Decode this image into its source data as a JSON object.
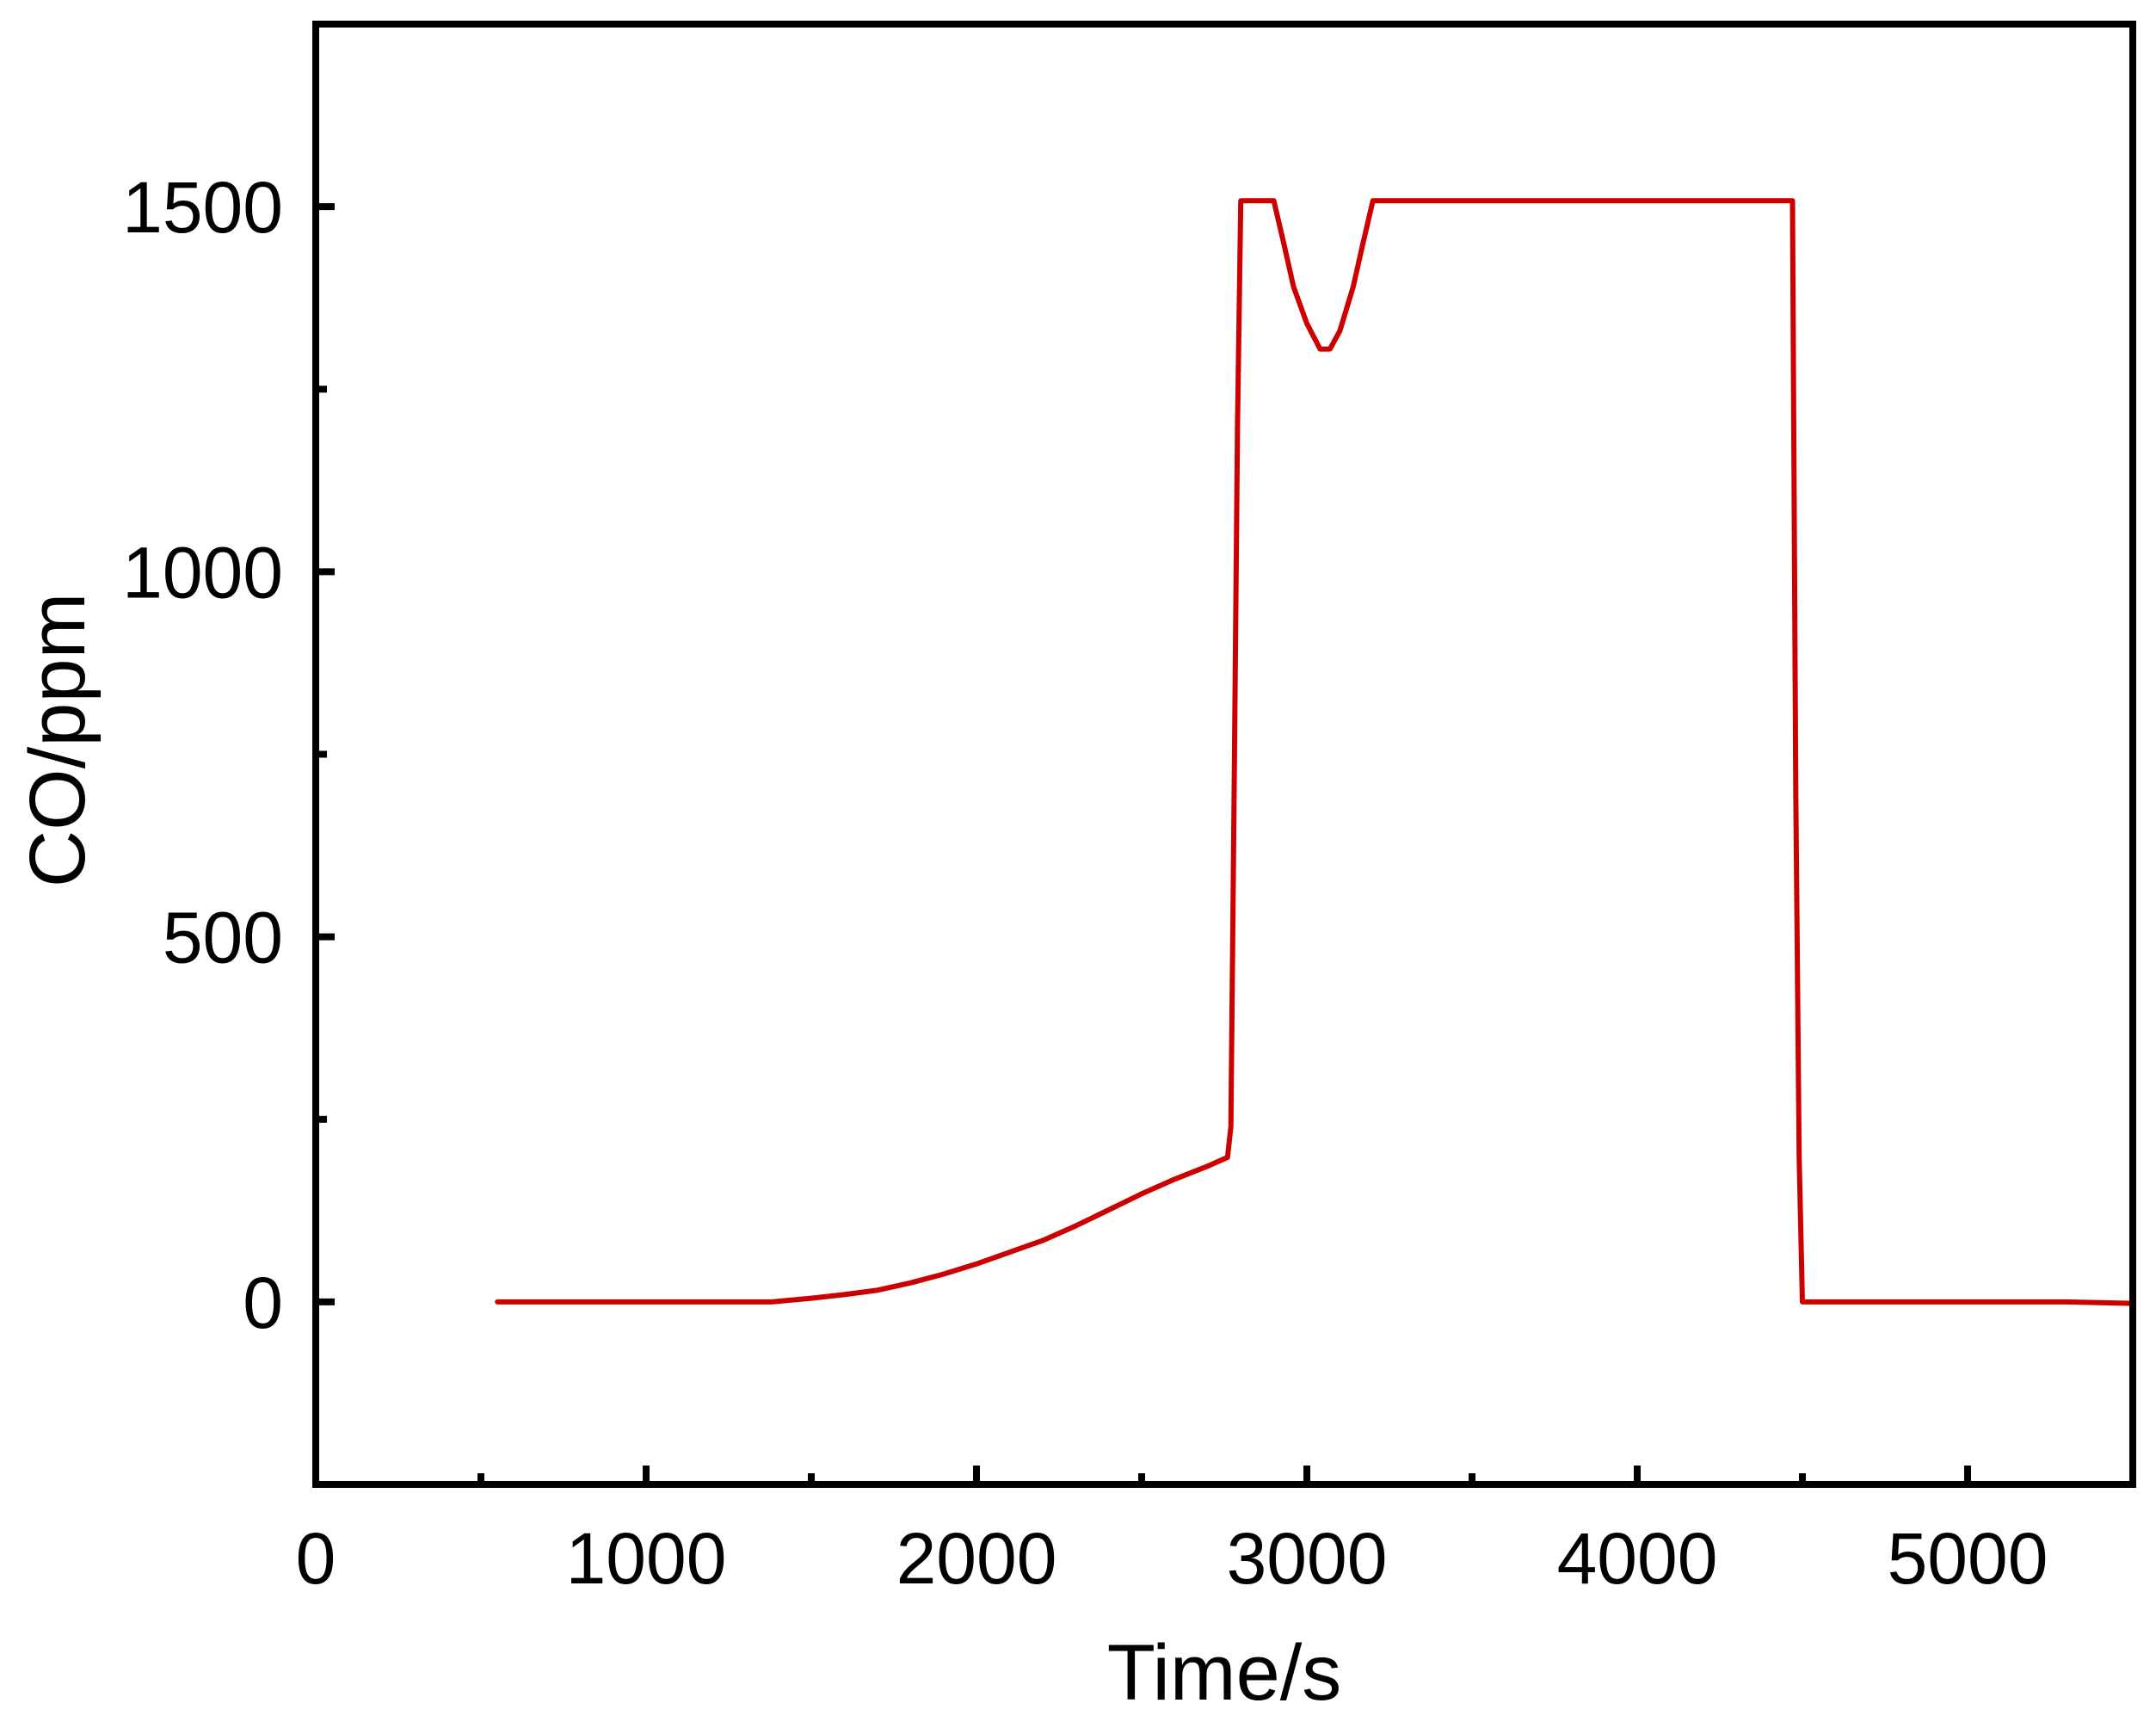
{
  "chart_data": {
    "type": "line",
    "title": "",
    "xlabel": "Time/s",
    "ylabel": "CO/ppm",
    "xlim": [
      0,
      5500
    ],
    "ylim": [
      -250,
      1750
    ],
    "x_ticks": [
      0,
      1000,
      2000,
      3000,
      4000,
      5000
    ],
    "x_tick_labels": [
      "0",
      "1000",
      "2000",
      "3000",
      "4000",
      "5000"
    ],
    "x_minor_ticks": [
      500,
      1500,
      2500,
      3500,
      4500
    ],
    "y_ticks": [
      0,
      500,
      1000,
      1500
    ],
    "y_tick_labels": [
      "0",
      "500",
      "1000",
      "1500"
    ],
    "y_minor_ticks": [
      250,
      750,
      1250
    ],
    "grid": false,
    "legend": "none",
    "series": [
      {
        "color": "#cc0000",
        "points": [
          [
            550,
            0
          ],
          [
            1000,
            0
          ],
          [
            1380,
            0
          ],
          [
            1500,
            5
          ],
          [
            1600,
            10
          ],
          [
            1700,
            16
          ],
          [
            1800,
            26
          ],
          [
            1900,
            38
          ],
          [
            2000,
            52
          ],
          [
            2100,
            68
          ],
          [
            2200,
            84
          ],
          [
            2300,
            104
          ],
          [
            2400,
            126
          ],
          [
            2500,
            148
          ],
          [
            2600,
            168
          ],
          [
            2700,
            186
          ],
          [
            2760,
            198
          ],
          [
            2770,
            240
          ],
          [
            2780,
            700
          ],
          [
            2790,
            1200
          ],
          [
            2800,
            1508
          ],
          [
            2900,
            1508
          ],
          [
            2930,
            1450
          ],
          [
            2960,
            1390
          ],
          [
            3000,
            1340
          ],
          [
            3040,
            1305
          ],
          [
            3070,
            1305
          ],
          [
            3100,
            1330
          ],
          [
            3140,
            1390
          ],
          [
            3170,
            1450
          ],
          [
            3200,
            1508
          ],
          [
            4470,
            1508
          ],
          [
            4480,
            700
          ],
          [
            4490,
            200
          ],
          [
            4500,
            0
          ],
          [
            5000,
            0
          ],
          [
            5300,
            0
          ],
          [
            5500,
            -2
          ]
        ]
      }
    ]
  },
  "colors": {
    "series": "#cc0000",
    "axis": "#000000"
  }
}
